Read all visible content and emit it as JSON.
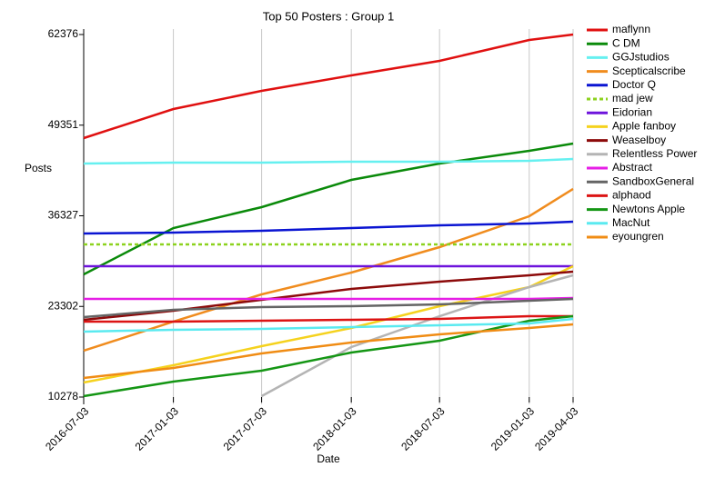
{
  "chart_data": {
    "type": "line",
    "title": "Top 50 Posters : Group 1",
    "x_label": "Date",
    "y_label": "Posts",
    "x": [
      "2016-07-03",
      "2017-01-03",
      "2017-07-03",
      "2018-01-03",
      "2018-07-03",
      "2019-01-03",
      "2019-04-03"
    ],
    "xlim": [
      "2016-07-03",
      "2019-04-03"
    ],
    "xticks": [
      "2016-07-03",
      "2017-01-03",
      "2017-07-03",
      "2018-01-03",
      "2018-07-03",
      "2019-01-03",
      "2019-04-03"
    ],
    "ylim": [
      10278,
      62376
    ],
    "yticks": [
      10278,
      23302,
      36327,
      49351,
      62376
    ],
    "grid": true,
    "series": [
      {
        "name": "maflynn",
        "color": "#e01010",
        "values": [
          47491,
          51669,
          54281,
          56500,
          58590,
          61593,
          62376
        ]
      },
      {
        "name": "C DM",
        "color": "#0a8a0a",
        "values": [
          27906,
          34565,
          37568,
          41485,
          43835,
          45663,
          46708
        ]
      },
      {
        "name": "GGJstudios",
        "color": "#66f0f0",
        "values": [
          43835,
          43966,
          43966,
          44096,
          44096,
          44227,
          44488
        ]
      },
      {
        "name": "Scepticalscribe",
        "color": "#f08c1e",
        "values": [
          16938,
          21116,
          25033,
          28167,
          31822,
          36262,
          40179
        ]
      },
      {
        "name": "Doctor Q",
        "color": "#0a14d2",
        "values": [
          33781,
          33912,
          34173,
          34565,
          34956,
          35217,
          35478
        ]
      },
      {
        "name": "mad jew",
        "color": "#8cd21e",
        "dashed": true,
        "values": [
          32214,
          32214,
          32214,
          32214,
          32214,
          32214,
          32214
        ]
      },
      {
        "name": "Eidorian",
        "color": "#6e14dc",
        "values": [
          29081,
          29081,
          29081,
          29081,
          29081,
          29081,
          29081
        ]
      },
      {
        "name": "Apple fanboy",
        "color": "#f5d21e",
        "values": [
          12368,
          14849,
          17591,
          20202,
          23336,
          26078,
          29081
        ]
      },
      {
        "name": "Weaselboy",
        "color": "#8c0a0a",
        "values": [
          21377,
          22683,
          24249,
          25816,
          26861,
          27775,
          28298
        ]
      },
      {
        "name": "Relentless Power",
        "color": "#b4b4b4",
        "values": [
          null,
          null,
          10409,
          17460,
          21899,
          26078,
          27775
        ]
      },
      {
        "name": "Abstract",
        "color": "#e61ee6",
        "values": [
          24380,
          24380,
          24380,
          24380,
          24380,
          24380,
          24510
        ]
      },
      {
        "name": "SandboxGeneral",
        "color": "#646464",
        "values": [
          21769,
          22814,
          23205,
          23336,
          23597,
          24119,
          24380
        ]
      },
      {
        "name": "alphaod",
        "color": "#dc1414",
        "values": [
          21116,
          21116,
          21247,
          21377,
          21508,
          21899,
          21899
        ]
      },
      {
        "name": "Newtons Apple",
        "color": "#149614",
        "values": [
          10409,
          12498,
          14065,
          16677,
          18374,
          21247,
          21899
        ]
      },
      {
        "name": "MacNut",
        "color": "#5aeaf0",
        "values": [
          19680,
          19941,
          20071,
          20332,
          20593,
          20854,
          21508
        ]
      },
      {
        "name": "eyoungren",
        "color": "#f08c14",
        "values": [
          13019,
          14455,
          16546,
          18112,
          19288,
          20202,
          20724
        ]
      }
    ]
  }
}
